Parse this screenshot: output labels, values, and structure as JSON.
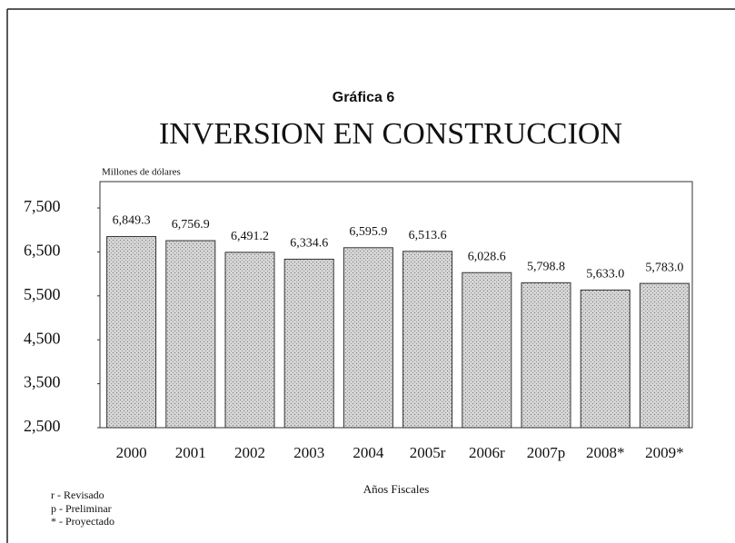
{
  "chart_data": {
    "type": "bar",
    "label": "Gráfica 6",
    "title": "INVERSION EN CONSTRUCCION",
    "y_label": "Millones de dólares",
    "x_label": "Años Fiscales",
    "categories": [
      "2000",
      "2001",
      "2002",
      "2003",
      "2004",
      "2005r",
      "2006r",
      "2007p",
      "2008*",
      "2009*"
    ],
    "values": [
      6849.3,
      6756.9,
      6491.2,
      6334.6,
      6595.9,
      6513.6,
      6028.6,
      5798.8,
      5633.0,
      5783.0
    ],
    "value_labels": [
      "6,849.3",
      "6,756.9",
      "6,491.2",
      "6,334.6",
      "6,595.9",
      "6,513.6",
      "6,028.6",
      "5,798.8",
      "5,633.0",
      "5,783.0"
    ],
    "color": "#c9c9c9",
    "ylim": [
      2500,
      8100
    ],
    "yticks": [
      {
        "value": 2500,
        "label": "2,500"
      },
      {
        "value": 3500,
        "label": "3,500"
      },
      {
        "value": 4500,
        "label": "4,500"
      },
      {
        "value": 5500,
        "label": "5,500"
      },
      {
        "value": 6500,
        "label": "6,500"
      },
      {
        "value": 7500,
        "label": "7,500"
      }
    ],
    "notes": [
      "r - Revisado",
      "p - Preliminar",
      "* - Proyectado"
    ]
  }
}
